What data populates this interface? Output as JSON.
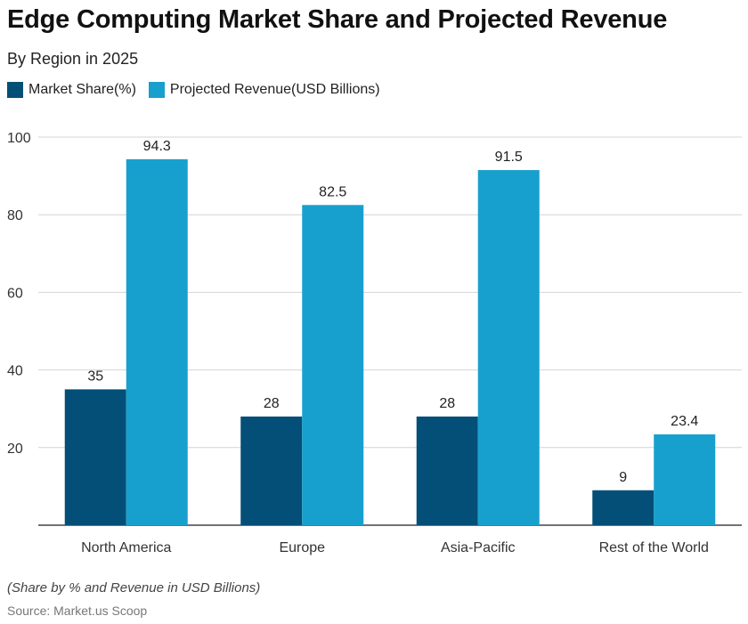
{
  "chart_data": {
    "type": "bar",
    "title": "Edge Computing Market Share and Projected Revenue",
    "subtitle": "By Region in 2025",
    "categories": [
      "North America",
      "Europe",
      "Asia-Pacific",
      "Rest of the World"
    ],
    "series": [
      {
        "name": "Market Share(%)",
        "values": [
          35,
          28,
          28,
          9
        ],
        "color": "#034f77"
      },
      {
        "name": "Projected Revenue(USD Billions)",
        "values": [
          94.3,
          82.5,
          91.5,
          23.4
        ],
        "color": "#17a0ce"
      }
    ],
    "value_labels": [
      [
        "35",
        "28",
        "28",
        "9"
      ],
      [
        "94.3",
        "82.5",
        "91.5",
        "23.4"
      ]
    ],
    "ylim": [
      0,
      100
    ],
    "yticks": [
      20,
      40,
      60,
      80,
      100
    ],
    "ytick_labels": [
      "20",
      "40",
      "60",
      "80",
      "100"
    ],
    "grid": true,
    "legend_position": "top-left",
    "note": "(Share by % and Revenue in USD Billions)",
    "source": "Source: Market.us Scoop"
  }
}
